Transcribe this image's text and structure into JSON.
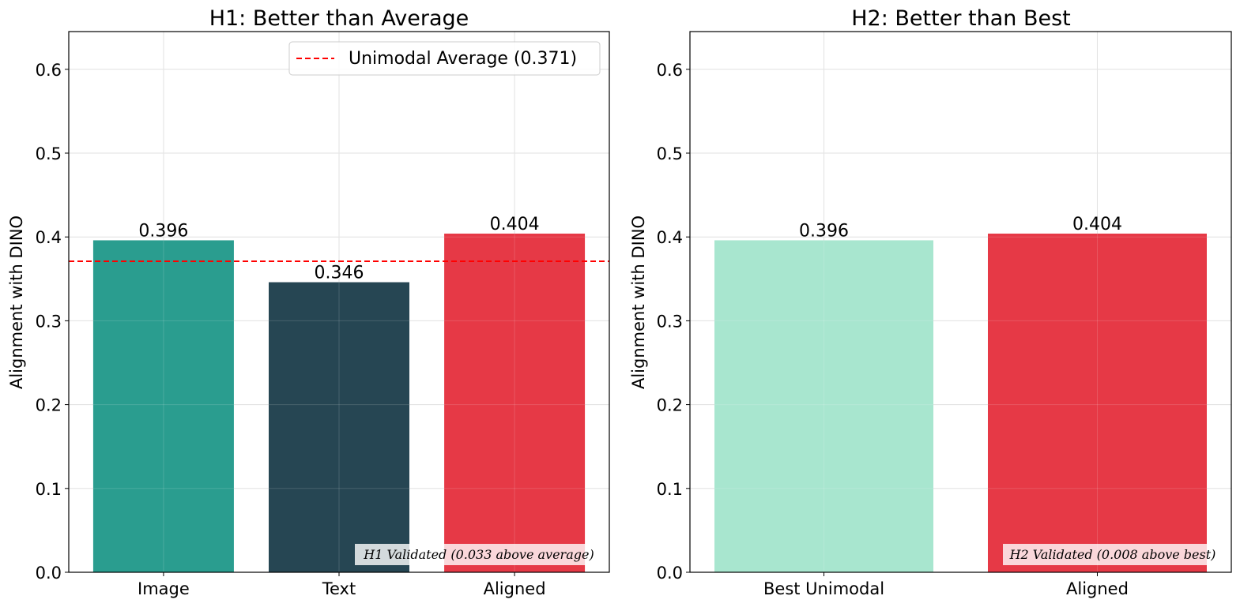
{
  "chart_data": [
    {
      "type": "bar",
      "title": "H1: Better than Average",
      "xlabel": "",
      "ylabel": "Alignment with DINO",
      "ylim": [
        0,
        0.645
      ],
      "yticks": [
        "0.0",
        "0.1",
        "0.2",
        "0.3",
        "0.4",
        "0.5",
        "0.6"
      ],
      "categories": [
        "Image",
        "Text",
        "Aligned"
      ],
      "values": [
        0.396,
        0.346,
        0.404
      ],
      "value_labels": [
        "0.396",
        "0.346",
        "0.404"
      ],
      "colors": [
        "#2a9d8f",
        "#264653",
        "#e63946"
      ],
      "grid": true,
      "reference_line": {
        "value": 0.371,
        "color": "#ff0000",
        "style": "dashed"
      },
      "legend": {
        "position": "top-right",
        "entries": [
          "Unimodal Average (0.371)"
        ]
      },
      "annotation": "H1 Validated (0.033 above average)"
    },
    {
      "type": "bar",
      "title": "H2: Better than Best",
      "xlabel": "",
      "ylabel": "Alignment with DINO",
      "ylim": [
        0,
        0.645
      ],
      "yticks": [
        "0.0",
        "0.1",
        "0.2",
        "0.3",
        "0.4",
        "0.5",
        "0.6"
      ],
      "categories": [
        "Best Unimodal",
        "Aligned"
      ],
      "values": [
        0.396,
        0.404
      ],
      "value_labels": [
        "0.396",
        "0.404"
      ],
      "colors": [
        "#a8e6cf",
        "#e63946"
      ],
      "grid": true,
      "annotation": "H2 Validated (0.008 above best)"
    }
  ]
}
